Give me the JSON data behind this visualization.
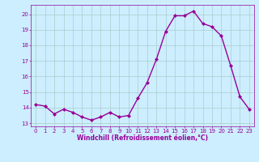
{
  "x": [
    0,
    1,
    2,
    3,
    4,
    5,
    6,
    7,
    8,
    9,
    10,
    11,
    12,
    13,
    14,
    15,
    16,
    17,
    18,
    19,
    20,
    21,
    22,
    23
  ],
  "y": [
    14.2,
    14.1,
    13.6,
    13.9,
    13.7,
    13.4,
    13.2,
    13.4,
    13.7,
    13.4,
    13.5,
    14.6,
    15.6,
    17.1,
    18.9,
    19.9,
    19.9,
    20.2,
    19.4,
    19.2,
    18.6,
    16.7,
    14.7,
    13.9
  ],
  "line_color": "#990099",
  "marker": "D",
  "marker_size": 2.0,
  "linewidth": 1.0,
  "bg_color": "#cceeff",
  "grid_color": "#aacccc",
  "xlabel": "Windchill (Refroidissement éolien,°C)",
  "xlabel_color": "#990099",
  "tick_color": "#990099",
  "ylabel_ticks": [
    13,
    14,
    15,
    16,
    17,
    18,
    19,
    20
  ],
  "xlim": [
    -0.5,
    23.5
  ],
  "ylim": [
    12.8,
    20.6
  ],
  "xlabel_fontsize": 5.5,
  "tick_fontsize": 5.0
}
